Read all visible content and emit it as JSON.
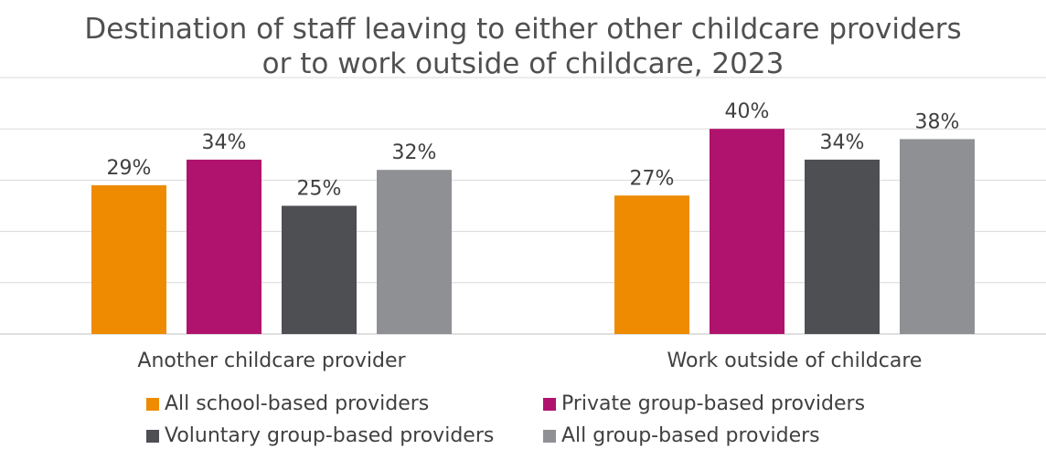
{
  "chart_data": {
    "type": "bar",
    "title_lines": [
      "Destination of staff leaving to either other childcare providers",
      "or to work outside of childcare, 2023"
    ],
    "categories": [
      "Another childcare provider",
      "Work outside of childcare"
    ],
    "series": [
      {
        "name": "All school-based providers",
        "color": "#EE8B00",
        "values": [
          29,
          27
        ],
        "labels": [
          "29%",
          "27%"
        ]
      },
      {
        "name": "Private group-based providers",
        "color": "#B0136E",
        "values": [
          34,
          40
        ],
        "labels": [
          "34%",
          "40%"
        ]
      },
      {
        "name": "Voluntary group-based providers",
        "color": "#4D4F53",
        "values": [
          25,
          34
        ],
        "labels": [
          "25%",
          "34%"
        ]
      },
      {
        "name": "All group-based providers",
        "color": "#8E9093",
        "values": [
          32,
          38
        ],
        "labels": [
          "32%",
          "38%"
        ]
      }
    ],
    "ylim": [
      0,
      50
    ],
    "gridlines": true,
    "legend_position": "bottom"
  }
}
